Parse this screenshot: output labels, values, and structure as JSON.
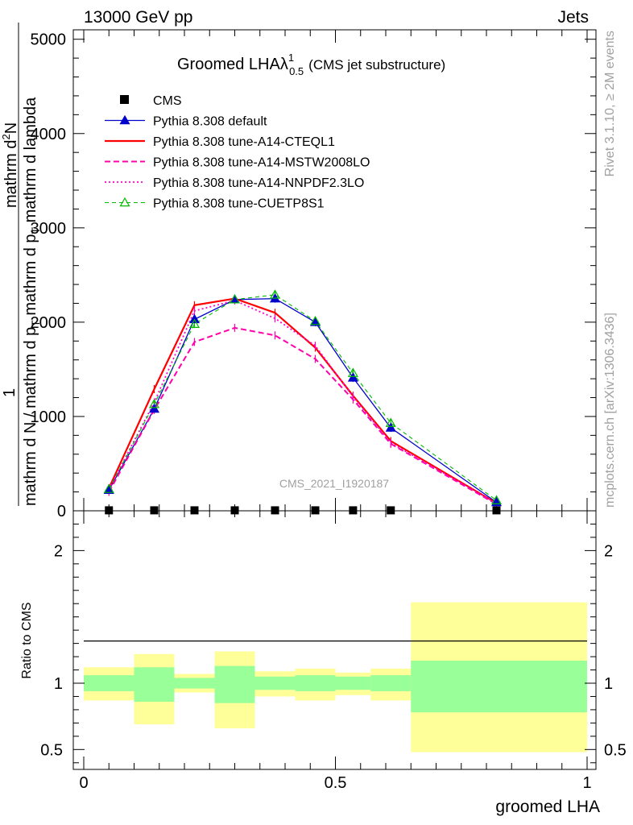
{
  "header": {
    "left": "13000 GeV pp",
    "right": "Jets"
  },
  "side_labels": {
    "rivet": "Rivet 3.1.10, ≥ 2M events",
    "mcplots": "mcplots.cern.ch [arXiv:1306.3436]"
  },
  "chart_data": {
    "type": "line",
    "title_main": "Groomed LHA",
    "title_lambda": "λ",
    "title_sup": "1",
    "title_sub": "0.5",
    "title_note": "(CMS jet substructure)",
    "watermark": "CMS_2021_I1920187",
    "ylabel_parts": [
      "1",
      "mathrm d N / mathrm d p",
      "T",
      "mathrm d N",
      "mathrm d p",
      "T",
      "mathrm d lambda",
      "mathrm d"
    ],
    "ylabel": {
      "numerator_prefix": "1",
      "frac_line_1": "mathrm d N / mathrm d p",
      "frac_sub_1": "T",
      "frac_line_1b": " mathrm d p",
      "frac_sub_1b": "T",
      "frac_line_1c": " mathrm d lambda",
      "top": "mathrm d",
      "top_sup": "2",
      "top_n": "N"
    },
    "xlabel": "groomed LHA",
    "ratio_ylabel": "Ratio to CMS",
    "xlim": [
      -0.03,
      1.03
    ],
    "ylim": [
      0,
      5100
    ],
    "y_ticks": [
      {
        "v": 0,
        "label": "0"
      },
      {
        "v": 1000,
        "label": "1000"
      },
      {
        "v": 2000,
        "label": "2000"
      },
      {
        "v": 3000,
        "label": "3000"
      },
      {
        "v": 4000,
        "label": "4000"
      },
      {
        "v": 5000,
        "label": "5000"
      }
    ],
    "x_ticks": [
      {
        "v": 0,
        "label": "0"
      },
      {
        "v": 0.5,
        "label": "0.5"
      },
      {
        "v": 1,
        "label": "1"
      }
    ],
    "ratio_ylim": [
      0.35,
      2.3
    ],
    "ratio_ticks": [
      {
        "v": 0.5,
        "label": "0.5"
      },
      {
        "v": 1,
        "label": "1"
      },
      {
        "v": 2,
        "label": "2"
      }
    ],
    "bins": [
      [
        0,
        0.1
      ],
      [
        0.1,
        0.18
      ],
      [
        0.18,
        0.26
      ],
      [
        0.26,
        0.34
      ],
      [
        0.34,
        0.42
      ],
      [
        0.42,
        0.5
      ],
      [
        0.5,
        0.57
      ],
      [
        0.57,
        0.65
      ],
      [
        0.65,
        1.0
      ]
    ],
    "x": [
      0.05,
      0.14,
      0.22,
      0.3,
      0.38,
      0.46,
      0.535,
      0.61,
      0.82
    ],
    "cms": [
      5,
      5,
      5,
      5,
      5,
      5,
      5,
      5,
      5
    ],
    "ratio_band_inner": [
      [
        0.94,
        1.06
      ],
      [
        0.86,
        1.12
      ],
      [
        0.96,
        1.04
      ],
      [
        0.85,
        1.13
      ],
      [
        0.95,
        1.05
      ],
      [
        0.94,
        1.06
      ],
      [
        0.95,
        1.05
      ],
      [
        0.94,
        1.06
      ],
      [
        0.78,
        1.17
      ]
    ],
    "ratio_band_outer": [
      [
        0.87,
        1.12
      ],
      [
        0.69,
        1.22
      ],
      [
        0.93,
        1.07
      ],
      [
        0.66,
        1.24
      ],
      [
        0.9,
        1.09
      ],
      [
        0.87,
        1.11
      ],
      [
        0.91,
        1.08
      ],
      [
        0.87,
        1.11
      ],
      [
        0.48,
        1.61
      ]
    ],
    "series": [
      {
        "name": "CMS",
        "color": "#000000",
        "style": "marker-square",
        "values": [
          5,
          5,
          5,
          5,
          5,
          5,
          5,
          5,
          5
        ]
      },
      {
        "name": "Pythia 8.308 default",
        "color": "#0000cc",
        "style": "solid",
        "width": 1.3,
        "marker": "triangle-filled",
        "values": [
          220,
          1080,
          2030,
          2240,
          2250,
          2000,
          1410,
          880,
          90
        ]
      },
      {
        "name": "Pythia 8.308 tune-A14-CTEQL1",
        "color": "#ff0000",
        "style": "solid",
        "width": 2.2,
        "marker": "none",
        "values": [
          240,
          1290,
          2180,
          2250,
          2100,
          1730,
          1220,
          740,
          80
        ]
      },
      {
        "name": "Pythia 8.308 tune-A14-MSTW2008LO",
        "color": "#ff00aa",
        "style": "dashed",
        "width": 2,
        "marker": "none",
        "values": [
          200,
          1070,
          1790,
          1940,
          1860,
          1610,
          1180,
          710,
          70
        ]
      },
      {
        "name": "Pythia 8.308 tune-A14-NNPDF2.3LO",
        "color": "#ff00cc",
        "style": "dotted",
        "width": 1.8,
        "marker": "none",
        "values": [
          230,
          1150,
          2120,
          2230,
          2040,
          1750,
          1210,
          720,
          80
        ]
      },
      {
        "name": "Pythia 8.308 tune-CUETP8S1",
        "color": "#00bb00",
        "style": "dashed-thin",
        "width": 1.1,
        "marker": "triangle-open",
        "values": [
          230,
          1130,
          1980,
          2240,
          2290,
          2010,
          1460,
          930,
          110
        ]
      }
    ]
  }
}
